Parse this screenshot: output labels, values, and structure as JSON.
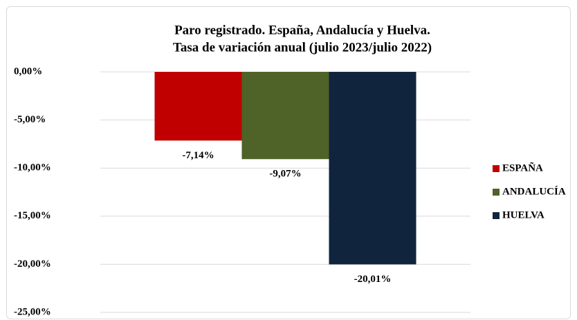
{
  "chart_data": {
    "type": "bar",
    "title": [
      "Paro registrado. España, Andalucía y Huelva.",
      "Tasa de variación anual (julio 2023/julio 2022)"
    ],
    "categories": [
      null
    ],
    "series": [
      {
        "name": "ESPAÑA",
        "color": "#c00000",
        "values": [
          -7.14
        ],
        "value_labels": [
          "-7,14%"
        ]
      },
      {
        "name": "ANDALUCÍA",
        "color": "#4f6228",
        "values": [
          -9.07
        ],
        "value_labels": [
          "-9,07%"
        ]
      },
      {
        "name": "HUELVA",
        "color": "#10243e",
        "values": [
          -20.01
        ],
        "value_labels": [
          "-20,01%"
        ]
      }
    ],
    "ylim": [
      -25,
      0
    ],
    "yticks": [
      {
        "value": 0,
        "label": "0,00%"
      },
      {
        "value": -5,
        "label": "-5,00%"
      },
      {
        "value": -10,
        "label": "-10,00%"
      },
      {
        "value": -15,
        "label": "-15,00%"
      },
      {
        "value": -20,
        "label": "-20,00%"
      },
      {
        "value": -25,
        "label": "-25,00%"
      }
    ],
    "grid": true,
    "legend": "right"
  }
}
